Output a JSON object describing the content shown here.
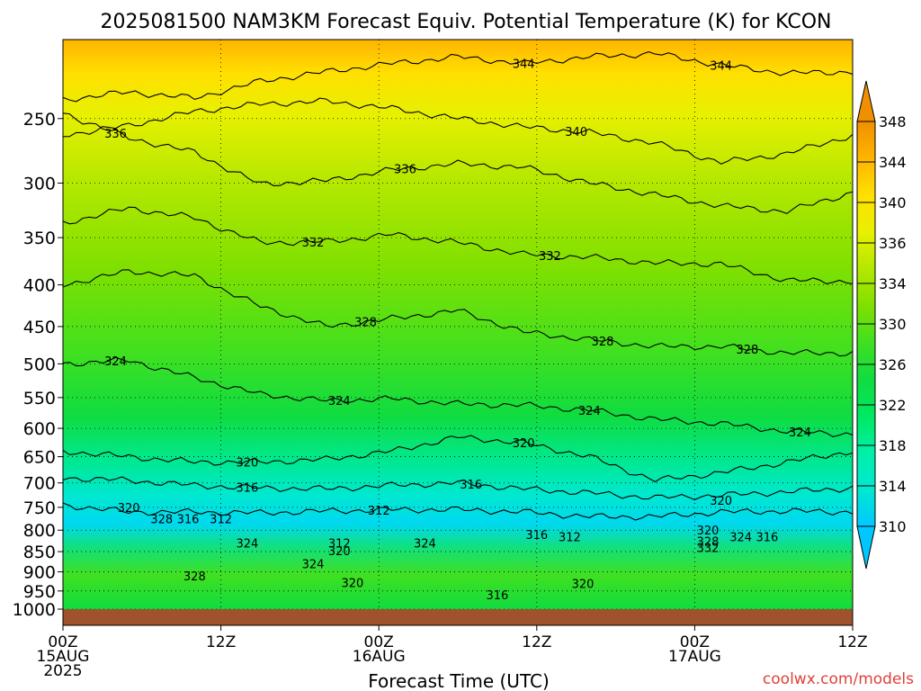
{
  "chart_data": {
    "type": "heatmap",
    "title": "2025081500 NAM3KM Forecast Equiv. Potential Temperature (K) for KCON",
    "xlabel": "Forecast Time (UTC)",
    "ylabel": "",
    "credit": "coolwx.com/models",
    "x_ticks": [
      {
        "hour": 0,
        "lines": [
          "00Z",
          "15AUG",
          "2025"
        ]
      },
      {
        "hour": 12,
        "lines": [
          "12Z"
        ]
      },
      {
        "hour": 24,
        "lines": [
          "00Z",
          "16AUG"
        ]
      },
      {
        "hour": 36,
        "lines": [
          "12Z"
        ]
      },
      {
        "hour": 48,
        "lines": [
          "00Z",
          "17AUG"
        ]
      },
      {
        "hour": 60,
        "lines": [
          "12Z"
        ]
      }
    ],
    "xlim": [
      0,
      60
    ],
    "ylim": [
      1000,
      200
    ],
    "yscale": "log-pressure",
    "y_ticks": [
      250,
      300,
      350,
      400,
      450,
      500,
      550,
      600,
      650,
      700,
      750,
      800,
      850,
      900,
      950,
      1000
    ],
    "grid": "dotted",
    "colorbar": {
      "ticks": [
        310,
        314,
        318,
        322,
        326,
        330,
        334,
        336,
        340,
        344,
        348
      ],
      "colors": [
        "#00c8ff",
        "#00e8d0",
        "#00f0a8",
        "#00e860",
        "#10dc40",
        "#40e020",
        "#80e000",
        "#b4e800",
        "#e8f000",
        "#ffe000",
        "#ffb400",
        "#f09000"
      ]
    },
    "isolines": [
      {
        "value": 344,
        "p": [
          237,
          232,
          236,
          225,
          219,
          214,
          210,
          214,
          210,
          208,
          215,
          220,
          219
        ],
        "labels": [
          {
            "hour": 35,
            "text": "344"
          },
          {
            "hour": 50,
            "text": "344"
          }
        ]
      },
      {
        "value": 340,
        "p": [
          262,
          255,
          245,
          240,
          238,
          243,
          250,
          256,
          260,
          268,
          283,
          276,
          262
        ],
        "labels": [
          {
            "hour": 39,
            "text": "340"
          }
        ]
      },
      {
        "value": 336,
        "p": [
          246,
          264,
          275,
          301,
          298,
          289,
          284,
          287,
          300,
          310,
          320,
          325,
          308
        ],
        "labels": [
          {
            "hour": 4,
            "text": "336"
          },
          {
            "hour": 26,
            "text": "336"
          }
        ]
      },
      {
        "value": 332,
        "p": [
          336,
          322,
          331,
          355,
          354,
          347,
          355,
          367,
          370,
          376,
          377,
          395,
          396
        ],
        "labels": [
          {
            "hour": 19,
            "text": "332"
          },
          {
            "hour": 37,
            "text": "332"
          }
        ]
      },
      {
        "value": 328,
        "p": [
          400,
          385,
          390,
          425,
          450,
          440,
          430,
          457,
          467,
          476,
          476,
          485,
          485
        ],
        "labels": [
          {
            "hour": 23,
            "text": "328"
          },
          {
            "hour": 41,
            "text": "328"
          },
          {
            "hour": 52,
            "text": "328"
          }
        ]
      },
      {
        "value": 324,
        "p": [
          500,
          495,
          520,
          545,
          555,
          552,
          560,
          562,
          570,
          585,
          592,
          605,
          610
        ],
        "labels": [
          {
            "hour": 4,
            "text": "324"
          },
          {
            "hour": 21,
            "text": "324"
          },
          {
            "hour": 40,
            "text": "324"
          },
          {
            "hour": 56,
            "text": "324"
          }
        ]
      },
      {
        "value": 320,
        "p": [
          640,
          650,
          660,
          660,
          655,
          640,
          615,
          625,
          650,
          695,
          680,
          660,
          640
        ],
        "labels": [
          {
            "hour": 14,
            "text": "320"
          },
          {
            "hour": 35,
            "text": "320"
          }
        ]
      },
      {
        "value": 316,
        "p": [
          690,
          695,
          705,
          710,
          712,
          705,
          700,
          712,
          720,
          730,
          725,
          718,
          710
        ],
        "labels": [
          {
            "hour": 14,
            "text": "316"
          },
          {
            "hour": 31,
            "text": "316"
          }
        ]
      },
      {
        "value": 312,
        "p": [
          745,
          760,
          760,
          762,
          758,
          755,
          755,
          760,
          770,
          770,
          760,
          758,
          760
        ],
        "labels": [
          {
            "hour": 24,
            "text": "312"
          }
        ]
      }
    ],
    "labels_low": [
      {
        "hour": 5,
        "p": 750,
        "text": "320"
      },
      {
        "hour": 7.5,
        "p": 775,
        "text": "328"
      },
      {
        "hour": 9.5,
        "p": 775,
        "text": "316"
      },
      {
        "hour": 12,
        "p": 775,
        "text": "312"
      },
      {
        "hour": 14,
        "p": 830,
        "text": "324"
      },
      {
        "hour": 21,
        "p": 830,
        "text": "312"
      },
      {
        "hour": 21,
        "p": 848,
        "text": "320"
      },
      {
        "hour": 19,
        "p": 880,
        "text": "324"
      },
      {
        "hour": 10,
        "p": 910,
        "text": "328"
      },
      {
        "hour": 22,
        "p": 928,
        "text": "320"
      },
      {
        "hour": 27.5,
        "p": 830,
        "text": "324"
      },
      {
        "hour": 36,
        "p": 810,
        "text": "316"
      },
      {
        "hour": 38.5,
        "p": 815,
        "text": "312"
      },
      {
        "hour": 39.5,
        "p": 930,
        "text": "320"
      },
      {
        "hour": 33,
        "p": 960,
        "text": "316"
      },
      {
        "hour": 49,
        "p": 800,
        "text": "320"
      },
      {
        "hour": 49,
        "p": 825,
        "text": "328"
      },
      {
        "hour": 49,
        "p": 840,
        "text": "332"
      },
      {
        "hour": 51.5,
        "p": 815,
        "text": "324"
      },
      {
        "hour": 53.5,
        "p": 815,
        "text": "316"
      },
      {
        "hour": 50,
        "p": 735,
        "text": "320"
      }
    ]
  }
}
